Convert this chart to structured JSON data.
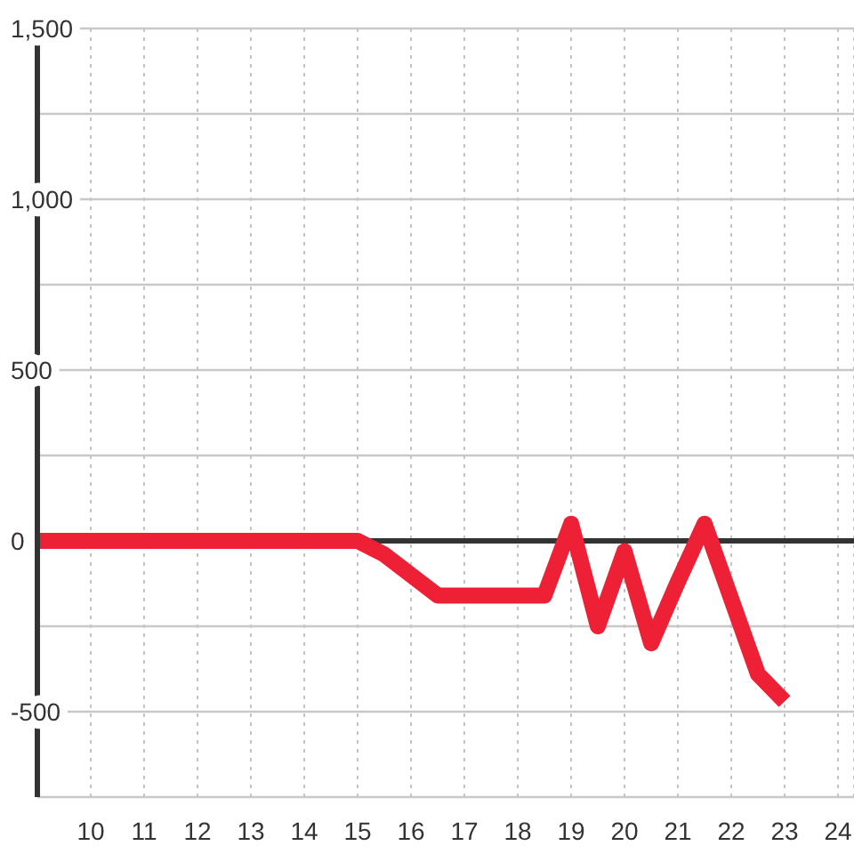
{
  "chart_data": {
    "type": "line",
    "x": [
      9,
      9.5,
      10,
      10.5,
      11,
      11.5,
      12,
      12.5,
      13,
      13.5,
      14,
      14.5,
      15,
      15.5,
      16,
      16.5,
      17,
      17.5,
      18,
      18.5,
      19,
      19.5,
      20,
      20.5,
      21,
      21.5,
      22,
      22.5,
      23
    ],
    "series": [
      {
        "color": "#ee2035",
        "values": [
          0,
          0,
          0,
          0,
          0,
          0,
          0,
          0,
          0,
          0,
          0,
          0,
          0,
          -40,
          -100,
          -160,
          -160,
          -160,
          -160,
          -160,
          50,
          -250,
          -30,
          -300,
          -120,
          50,
          -170,
          -390,
          -470
        ]
      }
    ],
    "xlim": [
      9,
      24.3
    ],
    "xticks": [
      10,
      11,
      12,
      13,
      14,
      15,
      16,
      17,
      18,
      19,
      20,
      21,
      22,
      23,
      24
    ],
    "ylim": [
      -750,
      1500
    ],
    "yticks": [
      {
        "value": -750,
        "label": null
      },
      -500,
      {
        "value": -250,
        "label": null
      },
      0,
      {
        "value": 250,
        "label": null
      },
      500,
      {
        "value": 750,
        "label": null
      },
      {
        "value": 1000,
        "label": "1,000"
      },
      {
        "value": 1250,
        "label": null
      },
      {
        "value": 1500,
        "label": "1,500"
      }
    ],
    "grid": true,
    "line_style": "solid",
    "ref_lines": [
      {
        "axis": "y",
        "value": 0,
        "color": "#333333"
      }
    ]
  }
}
